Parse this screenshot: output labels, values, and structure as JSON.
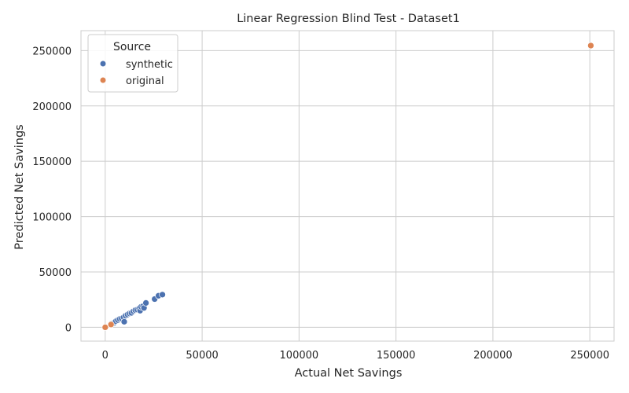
{
  "chart_data": {
    "type": "scatter",
    "title": "Linear Regression Blind Test - Dataset1",
    "xlabel": "Actual Net Savings",
    "ylabel": "Predicted Net Savings",
    "xlim": [
      -12500,
      262500
    ],
    "ylim": [
      -12500,
      268000
    ],
    "xticks": [
      0,
      50000,
      100000,
      150000,
      200000,
      250000
    ],
    "xtick_labels": [
      "0",
      "50000",
      "100000",
      "150000",
      "200000",
      "250000"
    ],
    "yticks": [
      0,
      50000,
      100000,
      150000,
      200000,
      250000
    ],
    "ytick_labels": [
      "0",
      "50000",
      "100000",
      "150000",
      "200000",
      "250000"
    ],
    "grid": true,
    "legend": {
      "title": "Source",
      "placement": "top-left"
    },
    "series": [
      {
        "name": "synthetic",
        "color": "#4c72b0",
        "points": [
          [
            3000,
            3000
          ],
          [
            4500,
            4000
          ],
          [
            5500,
            5500
          ],
          [
            6500,
            6500
          ],
          [
            7500,
            7500
          ],
          [
            8500,
            8000
          ],
          [
            9500,
            9000
          ],
          [
            9800,
            5000
          ],
          [
            10500,
            10500
          ],
          [
            11500,
            11500
          ],
          [
            12500,
            12500
          ],
          [
            13500,
            13000
          ],
          [
            14500,
            14500
          ],
          [
            15500,
            15500
          ],
          [
            16500,
            16000
          ],
          [
            17500,
            17000
          ],
          [
            18000,
            15000
          ],
          [
            18500,
            18500
          ],
          [
            19500,
            19000
          ],
          [
            20000,
            17500
          ],
          [
            21000,
            22000
          ],
          [
            25500,
            25500
          ],
          [
            27500,
            28500
          ],
          [
            29500,
            29500
          ]
        ]
      },
      {
        "name": "original",
        "color": "#dd8452",
        "points": [
          [
            0,
            0
          ],
          [
            3000,
            2500
          ],
          [
            250500,
            254500
          ]
        ]
      }
    ]
  }
}
